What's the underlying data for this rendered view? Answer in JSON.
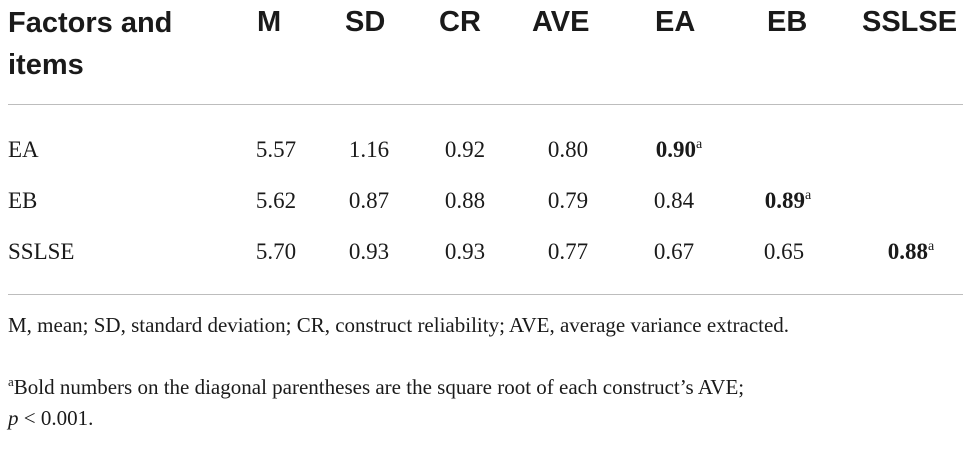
{
  "table": {
    "headers": [
      "Factors and items",
      "M",
      "SD",
      "CR",
      "AVE",
      "EA",
      "EB",
      "SSLSE"
    ],
    "rows": [
      {
        "label": "EA",
        "m": "5.57",
        "sd": "1.16",
        "cr": "0.92",
        "ave": "0.80",
        "ea": "0.90",
        "ea_sup": "a",
        "eb": "",
        "sslse": ""
      },
      {
        "label": "EB",
        "m": "5.62",
        "sd": "0.87",
        "cr": "0.88",
        "ave": "0.79",
        "ea": "0.84",
        "eb": "0.89",
        "eb_sup": "a",
        "sslse": ""
      },
      {
        "label": "SSLSE",
        "m": "5.70",
        "sd": "0.93",
        "cr": "0.93",
        "ave": "0.77",
        "ea": "0.67",
        "eb": "0.65",
        "sslse": "0.88",
        "sslse_sup": "a"
      }
    ]
  },
  "notes": {
    "abbreviations": "M, mean; SD, standard deviation; CR, construct reliability; AVE, average variance extracted.",
    "footnote_marker": "a",
    "footnote_text": "Bold numbers on the diagonal parentheses are the square root of each construct’s AVE;",
    "p_symbol": "p",
    "p_value": " < 0.001."
  }
}
